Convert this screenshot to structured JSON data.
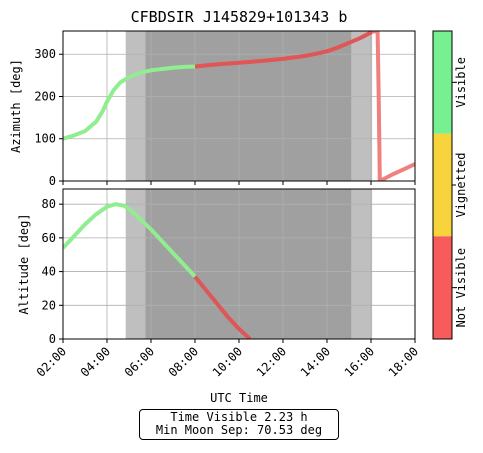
{
  "figure": {
    "title": "CFBDSIR J145829+101343 b",
    "info_box": {
      "line1": "Time Visible 2.23 h",
      "line2": "Min Moon Sep: 70.53 deg"
    }
  },
  "chart_data": [
    {
      "type": "line",
      "id": "azimuth",
      "title": "CFBDSIR J145829+101343 b",
      "xlabel": "",
      "ylabel": "Azimuth [deg]",
      "xlim_hours": [
        2,
        18
      ],
      "ylim": [
        0,
        355
      ],
      "yticks": [
        0,
        100,
        200,
        300
      ],
      "grid": true,
      "shaded_bands": [
        {
          "start_hour": 4.85,
          "end_hour": 16.05,
          "shade": "light gray",
          "color": "#bfbfbf"
        },
        {
          "start_hour": 5.75,
          "end_hour": 15.1,
          "shade": "dark gray",
          "color": "#a0a0a0"
        }
      ],
      "series": [
        {
          "status": "Visible",
          "color": "#90ee90",
          "points": [
            [
              2.0,
              100
            ],
            [
              2.5,
              108
            ],
            [
              3.0,
              118
            ],
            [
              3.5,
              140
            ],
            [
              3.8,
              165
            ],
            [
              4.0,
              188
            ],
            [
              4.3,
              215
            ],
            [
              4.6,
              233
            ],
            [
              5.0,
              246
            ],
            [
              5.5,
              256
            ],
            [
              6.0,
              262
            ],
            [
              6.5,
              265
            ],
            [
              7.0,
              268
            ],
            [
              7.5,
              270
            ],
            [
              8.0,
              271
            ]
          ]
        },
        {
          "status": "Not Visible",
          "color": "#e05555",
          "points": [
            [
              8.0,
              271
            ],
            [
              9.0,
              276
            ],
            [
              10.0,
              280
            ],
            [
              11.0,
              284
            ],
            [
              12.0,
              289
            ],
            [
              13.0,
              296
            ],
            [
              13.5,
              301
            ],
            [
              14.0,
              307
            ],
            [
              14.5,
              316
            ],
            [
              15.0,
              327
            ],
            [
              15.5,
              338
            ],
            [
              15.8,
              346
            ],
            [
              16.05,
              353
            ]
          ]
        },
        {
          "status": "Not Visible (outside night)",
          "color": "#f08080",
          "points": [
            [
              16.05,
              353
            ],
            [
              16.3,
              355
            ],
            [
              16.35,
              200
            ],
            [
              16.4,
              0
            ],
            [
              16.7,
              8
            ],
            [
              17.0,
              16
            ],
            [
              17.5,
              28
            ],
            [
              18.0,
              40
            ]
          ]
        }
      ]
    },
    {
      "type": "line",
      "id": "altitude",
      "title": "",
      "xlabel": "UTC Time",
      "ylabel": "Altitude [deg]",
      "xlim_hours": [
        2,
        18
      ],
      "ylim": [
        0,
        89
      ],
      "yticks": [
        0,
        20,
        40,
        60,
        80
      ],
      "xticks": [
        "02:00",
        "04:00",
        "06:00",
        "08:00",
        "10:00",
        "12:00",
        "14:00",
        "16:00",
        "18:00"
      ],
      "grid": true,
      "shaded_bands": [
        {
          "start_hour": 4.85,
          "end_hour": 16.05,
          "shade": "light gray",
          "color": "#bfbfbf"
        },
        {
          "start_hour": 5.75,
          "end_hour": 15.1,
          "shade": "dark gray",
          "color": "#a0a0a0"
        }
      ],
      "series": [
        {
          "status": "Visible",
          "color": "#90ee90",
          "points": [
            [
              2.0,
              54
            ],
            [
              2.5,
              61
            ],
            [
              3.0,
              68
            ],
            [
              3.5,
              74
            ],
            [
              4.0,
              78.5
            ],
            [
              4.4,
              80
            ],
            [
              4.8,
              79
            ],
            [
              5.2,
              75
            ],
            [
              5.6,
              70
            ],
            [
              6.0,
              65
            ],
            [
              6.5,
              58
            ],
            [
              7.0,
              51
            ],
            [
              7.5,
              44
            ],
            [
              8.0,
              37
            ]
          ]
        },
        {
          "status": "Not Visible",
          "color": "#e05555",
          "points": [
            [
              8.0,
              37
            ],
            [
              8.5,
              29
            ],
            [
              9.0,
              21
            ],
            [
              9.5,
              13
            ],
            [
              10.0,
              6
            ],
            [
              10.5,
              0
            ]
          ]
        }
      ]
    }
  ],
  "colorbar": {
    "labels": [
      "Visible",
      "Vignetted",
      "Not Visible"
    ],
    "colors": [
      "#77f08f",
      "#f7d43c",
      "#f85b5b"
    ]
  }
}
